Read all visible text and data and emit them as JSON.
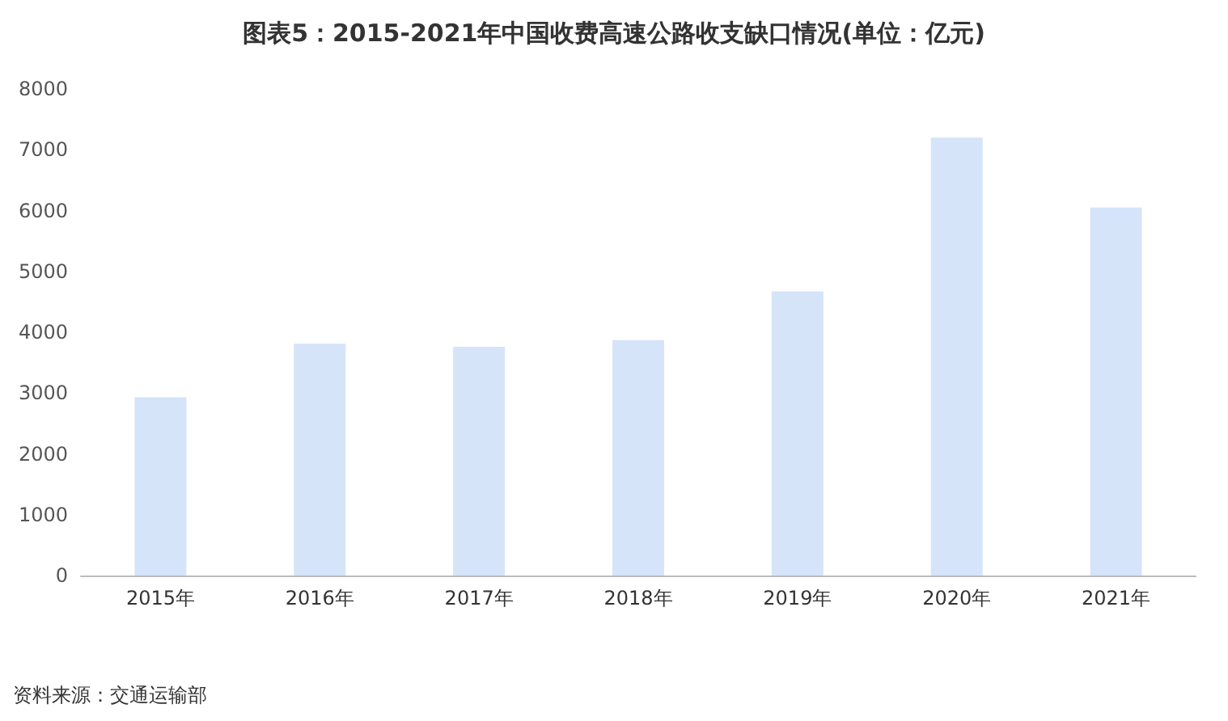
{
  "chart_data": {
    "type": "bar",
    "title": "图表5：2015-2021年中国收费高速公路收支缺口情况(单位：亿元)",
    "categories": [
      "2015年",
      "2016年",
      "2017年",
      "2018年",
      "2019年",
      "2020年",
      "2021年"
    ],
    "values": [
      2930,
      3810,
      3760,
      3870,
      4670,
      7200,
      6050
    ],
    "color": "#d6e4fa",
    "ylim": [
      0,
      8000
    ],
    "yticks": [
      0,
      1000,
      2000,
      3000,
      4000,
      5000,
      6000,
      7000,
      8000
    ],
    "grid": false,
    "annotations": [
      "资料来源：交通运输部"
    ]
  }
}
